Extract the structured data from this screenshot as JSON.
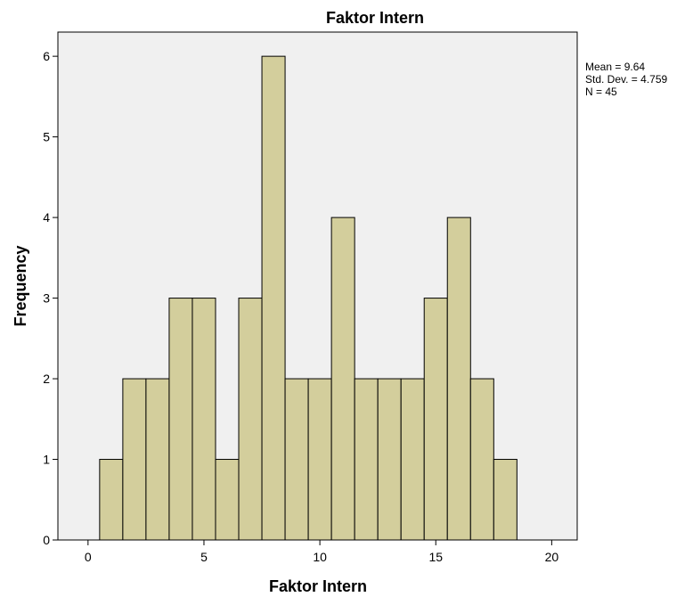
{
  "chart_data": {
    "type": "bar",
    "title": "Faktor Intern",
    "xlabel": "Faktor Intern",
    "ylabel": "Frequency",
    "xlim": [
      -1.3,
      21.1
    ],
    "ylim": [
      0,
      6.3
    ],
    "x_ticks": [
      0,
      5,
      10,
      15,
      20
    ],
    "y_ticks": [
      0,
      1,
      2,
      3,
      4,
      5,
      6
    ],
    "bin_width": 1,
    "bins": [
      {
        "x": 1,
        "value": 1
      },
      {
        "x": 2,
        "value": 2
      },
      {
        "x": 3,
        "value": 2
      },
      {
        "x": 4,
        "value": 3
      },
      {
        "x": 5,
        "value": 3
      },
      {
        "x": 6,
        "value": 1
      },
      {
        "x": 7,
        "value": 3
      },
      {
        "x": 8,
        "value": 6
      },
      {
        "x": 9,
        "value": 2
      },
      {
        "x": 10,
        "value": 2
      },
      {
        "x": 11,
        "value": 4
      },
      {
        "x": 12,
        "value": 2
      },
      {
        "x": 13,
        "value": 2
      },
      {
        "x": 14,
        "value": 2
      },
      {
        "x": 15,
        "value": 3
      },
      {
        "x": 16,
        "value": 4
      },
      {
        "x": 17,
        "value": 2
      },
      {
        "x": 18,
        "value": 1
      }
    ],
    "stats": {
      "mean": "Mean = 9.64",
      "sd": "Std. Dev. = 4.759",
      "n": "N = 45"
    },
    "colors": {
      "bar_fill": "#d3ce9c",
      "bar_stroke": "#000000",
      "plot_background": "#f0f0f0",
      "grid": "none"
    },
    "grid": false,
    "legend_position": "top-right"
  }
}
